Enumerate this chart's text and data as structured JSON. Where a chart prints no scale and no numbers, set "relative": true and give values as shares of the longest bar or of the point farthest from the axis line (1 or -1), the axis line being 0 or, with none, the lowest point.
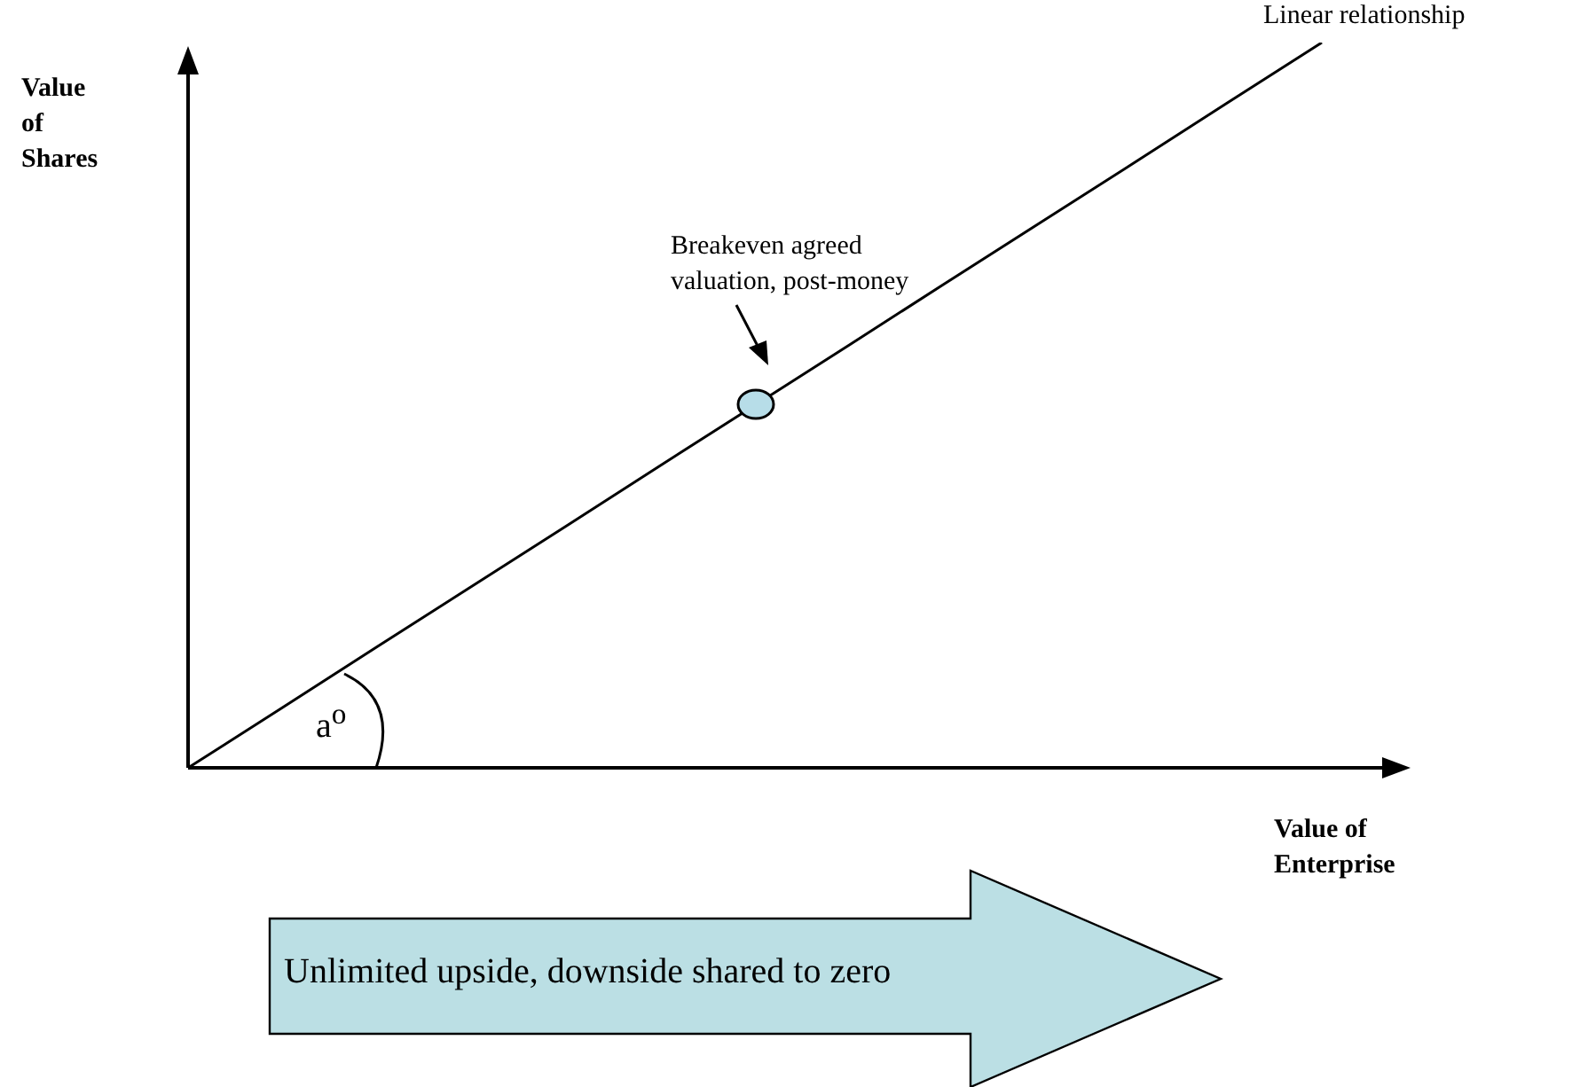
{
  "chart_data": {
    "type": "line",
    "relative": true,
    "ylabel": "Value of Shares",
    "xlabel": "Value of Enterprise",
    "categories": [
      null,
      null,
      null,
      null,
      null,
      null,
      null,
      null,
      null,
      null,
      null,
      null,
      null
    ],
    "series": [
      {
        "color": "#000000",
        "marker": "none",
        "values": [
          0,
          0.083,
          0.167,
          0.25,
          0.333,
          0.417,
          0.5,
          0.583,
          0.667,
          0.75,
          0.833,
          0.917,
          1
        ]
      }
    ],
    "annotations": [
      "Linear relationship",
      "Breakeven agreed valuation, post-money",
      "a$^{o}$",
      "Unlimited upside, downside shared to zero"
    ],
    "legend": false
  }
}
